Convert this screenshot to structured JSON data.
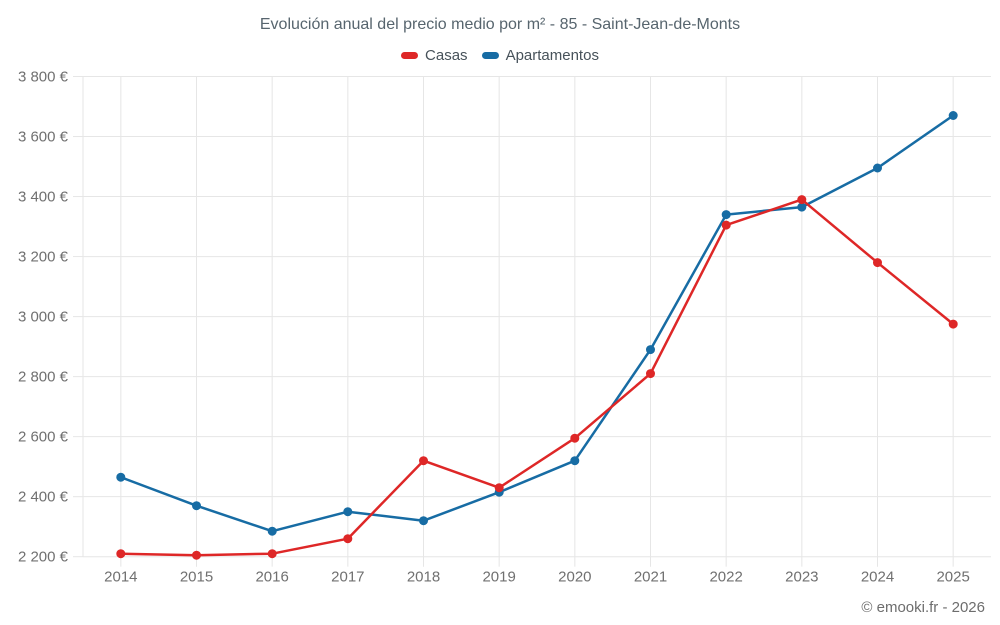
{
  "header": {
    "title": "Evolución anual del precio medio por m² - 85 - Saint-Jean-de-Monts"
  },
  "legend": {
    "items": [
      {
        "label": "Casas",
        "color": "#de2727"
      },
      {
        "label": "Apartamentos",
        "color": "#176ca4"
      }
    ]
  },
  "footer": {
    "credit": "© emooki.fr - 2026"
  },
  "chart_data": {
    "type": "line",
    "title": "Evolución anual del precio medio por m² - 85 - Saint-Jean-de-Monts",
    "x": [
      2014,
      2015,
      2016,
      2017,
      2018,
      2019,
      2020,
      2021,
      2022,
      2023,
      2024,
      2025
    ],
    "series": [
      {
        "name": "Casas",
        "color": "#de2727",
        "values": [
          2210,
          2205,
          2210,
          2260,
          2520,
          2430,
          2595,
          2810,
          3305,
          3390,
          3180,
          2975
        ]
      },
      {
        "name": "Apartamentos",
        "color": "#176ca4",
        "values": [
          2465,
          2370,
          2285,
          2350,
          2320,
          2415,
          2520,
          2890,
          3340,
          3365,
          3495,
          3670
        ]
      }
    ],
    "ylabel": "",
    "xlabel": "",
    "ylim": [
      2200,
      3800
    ],
    "ytick_step": 200,
    "ytick_suffix": " €",
    "grid": true,
    "legend_position": "top",
    "grid_color": "#e6e6e6",
    "axis_label_color": "#707070"
  }
}
